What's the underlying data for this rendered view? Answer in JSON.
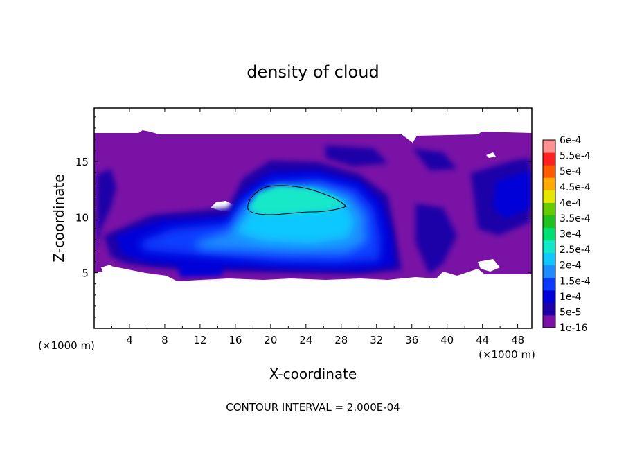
{
  "chart_data": {
    "type": "heatmap",
    "title": "density of cloud",
    "xlabel": "X-coordinate",
    "ylabel": "Z-coordinate",
    "x_unit_left": "(×1000 m)",
    "x_unit_right": "(×1000 m)",
    "footer": "CONTOUR INTERVAL = 2.000E-04",
    "xlim": [
      0,
      49.6
    ],
    "ylim": [
      0,
      19.8
    ],
    "x_ticks": [
      4,
      8,
      12,
      16,
      20,
      24,
      28,
      32,
      36,
      40,
      44,
      48
    ],
    "y_ticks": [
      5,
      10,
      15
    ],
    "x_tick_labels": [
      "4",
      "8",
      "12",
      "16",
      "20",
      "24",
      "28",
      "32",
      "36",
      "40",
      "44",
      "48"
    ],
    "y_tick_labels": [
      "5",
      "10",
      "15"
    ],
    "colorbar": {
      "labels": [
        "6e-4",
        "5.5e-4",
        "5e-4",
        "4.5e-4",
        "4e-4",
        "3.5e-4",
        "3e-4",
        "2.5e-4",
        "2e-4",
        "1.5e-4",
        "1e-4",
        "5e-5",
        "1e-16"
      ],
      "colors": [
        "#7a12a6",
        "#1f00a8",
        "#0000d8",
        "#0a3cff",
        "#1e8cff",
        "#10c8ff",
        "#12e8c8",
        "#00e070",
        "#20c020",
        "#66cc00",
        "#e6e600",
        "#ffaa00",
        "#ff5a00",
        "#ff2020",
        "#ff9090"
      ]
    },
    "cloud_layer_z": [
      5,
      17.6
    ],
    "cloud_max_region": {
      "x": [
        17,
        29
      ],
      "z": [
        10.5,
        12.8
      ],
      "level": "2e-4"
    }
  }
}
